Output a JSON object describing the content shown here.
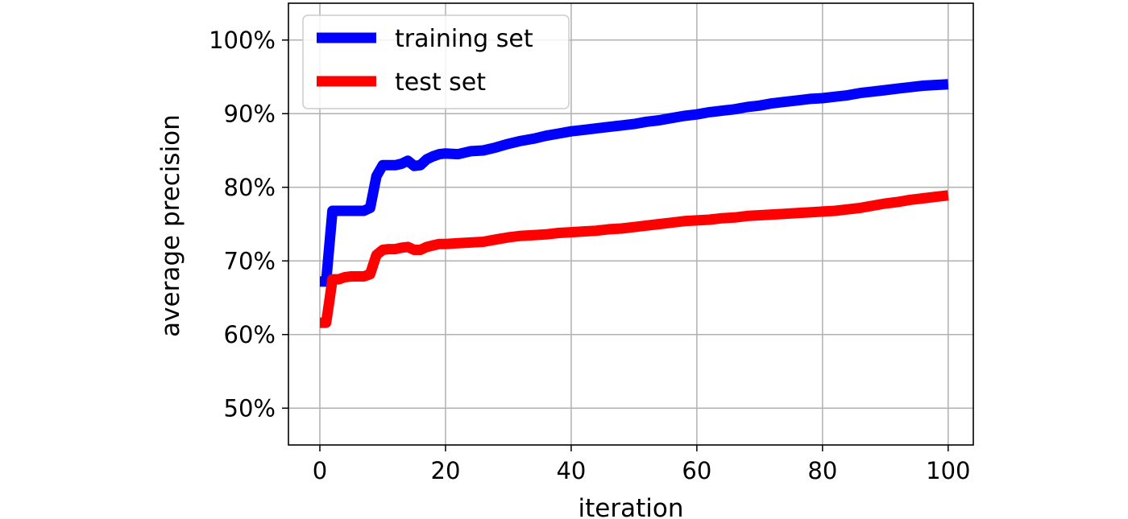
{
  "chart_data": {
    "type": "line",
    "title": "",
    "xlabel": "iteration",
    "ylabel": "average precision",
    "xlim": [
      -5,
      104
    ],
    "ylim": [
      45,
      105
    ],
    "grid": true,
    "legend_position": "top-left",
    "x_ticks": [
      0,
      20,
      40,
      60,
      80,
      100
    ],
    "x_tick_labels": [
      "0",
      "20",
      "40",
      "60",
      "80",
      "100"
    ],
    "y_ticks": [
      50,
      60,
      70,
      80,
      90,
      100
    ],
    "y_tick_labels": [
      "50%",
      "60%",
      "70%",
      "80%",
      "90%",
      "100%"
    ],
    "series": [
      {
        "name": "training set",
        "color": "#0000ff",
        "points": [
          [
            0,
            67.2
          ],
          [
            1,
            67.2
          ],
          [
            1.5,
            72
          ],
          [
            2,
            76.8
          ],
          [
            3,
            76.8
          ],
          [
            4,
            76.8
          ],
          [
            5,
            76.8
          ],
          [
            6,
            76.8
          ],
          [
            7,
            76.8
          ],
          [
            8,
            77.2
          ],
          [
            9,
            81.5
          ],
          [
            10,
            83.0
          ],
          [
            11,
            83.0
          ],
          [
            12,
            83.0
          ],
          [
            13,
            83.2
          ],
          [
            14,
            83.6
          ],
          [
            15,
            82.9
          ],
          [
            16,
            83.0
          ],
          [
            17,
            83.8
          ],
          [
            18,
            84.2
          ],
          [
            19,
            84.5
          ],
          [
            20,
            84.6
          ],
          [
            22,
            84.5
          ],
          [
            24,
            84.9
          ],
          [
            26,
            85.0
          ],
          [
            28,
            85.4
          ],
          [
            30,
            85.9
          ],
          [
            32,
            86.3
          ],
          [
            34,
            86.6
          ],
          [
            36,
            87.0
          ],
          [
            38,
            87.3
          ],
          [
            40,
            87.6
          ],
          [
            42,
            87.8
          ],
          [
            44,
            88.0
          ],
          [
            46,
            88.2
          ],
          [
            48,
            88.4
          ],
          [
            50,
            88.6
          ],
          [
            52,
            88.9
          ],
          [
            54,
            89.1
          ],
          [
            56,
            89.4
          ],
          [
            58,
            89.7
          ],
          [
            60,
            89.9
          ],
          [
            62,
            90.2
          ],
          [
            64,
            90.4
          ],
          [
            66,
            90.6
          ],
          [
            68,
            90.9
          ],
          [
            70,
            91.1
          ],
          [
            72,
            91.4
          ],
          [
            74,
            91.6
          ],
          [
            76,
            91.8
          ],
          [
            78,
            92.0
          ],
          [
            80,
            92.1
          ],
          [
            82,
            92.3
          ],
          [
            84,
            92.5
          ],
          [
            86,
            92.8
          ],
          [
            88,
            93.0
          ],
          [
            90,
            93.2
          ],
          [
            92,
            93.4
          ],
          [
            94,
            93.6
          ],
          [
            96,
            93.8
          ],
          [
            98,
            93.9
          ],
          [
            100,
            94.0
          ]
        ]
      },
      {
        "name": "test set",
        "color": "#ff0000",
        "points": [
          [
            0,
            61.6
          ],
          [
            1,
            61.6
          ],
          [
            1.5,
            64.5
          ],
          [
            2,
            67.5
          ],
          [
            3,
            67.5
          ],
          [
            4,
            67.8
          ],
          [
            5,
            67.9
          ],
          [
            6,
            67.9
          ],
          [
            7,
            67.9
          ],
          [
            8,
            68.2
          ],
          [
            9,
            70.8
          ],
          [
            10,
            71.5
          ],
          [
            11,
            71.6
          ],
          [
            12,
            71.6
          ],
          [
            13,
            71.8
          ],
          [
            14,
            71.9
          ],
          [
            15,
            71.5
          ],
          [
            16,
            71.5
          ],
          [
            17,
            71.9
          ],
          [
            18,
            72.1
          ],
          [
            19,
            72.3
          ],
          [
            20,
            72.3
          ],
          [
            22,
            72.4
          ],
          [
            24,
            72.5
          ],
          [
            26,
            72.6
          ],
          [
            28,
            72.9
          ],
          [
            30,
            73.2
          ],
          [
            32,
            73.4
          ],
          [
            34,
            73.5
          ],
          [
            36,
            73.6
          ],
          [
            38,
            73.8
          ],
          [
            40,
            73.9
          ],
          [
            42,
            74.0
          ],
          [
            44,
            74.1
          ],
          [
            46,
            74.3
          ],
          [
            48,
            74.4
          ],
          [
            50,
            74.6
          ],
          [
            52,
            74.8
          ],
          [
            54,
            75.0
          ],
          [
            56,
            75.2
          ],
          [
            58,
            75.4
          ],
          [
            60,
            75.5
          ],
          [
            62,
            75.6
          ],
          [
            64,
            75.8
          ],
          [
            66,
            75.9
          ],
          [
            68,
            76.1
          ],
          [
            70,
            76.2
          ],
          [
            72,
            76.3
          ],
          [
            74,
            76.4
          ],
          [
            76,
            76.5
          ],
          [
            78,
            76.6
          ],
          [
            80,
            76.7
          ],
          [
            82,
            76.8
          ],
          [
            84,
            77.0
          ],
          [
            86,
            77.2
          ],
          [
            88,
            77.5
          ],
          [
            90,
            77.8
          ],
          [
            92,
            78.0
          ],
          [
            94,
            78.3
          ],
          [
            96,
            78.5
          ],
          [
            98,
            78.7
          ],
          [
            100,
            78.9
          ]
        ]
      }
    ]
  }
}
